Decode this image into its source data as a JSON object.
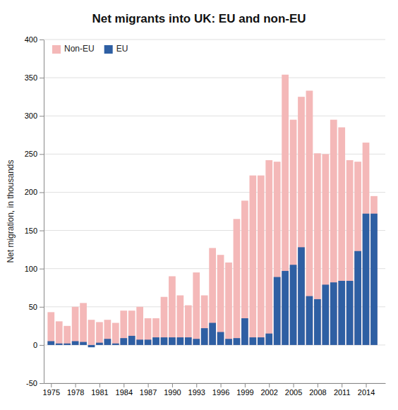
{
  "chart_data": {
    "type": "bar",
    "title": "Net migrants into UK: EU and non-EU",
    "y_label": "Net migration, in thousands",
    "x": [
      1975,
      1976,
      1977,
      1978,
      1979,
      1980,
      1981,
      1982,
      1983,
      1984,
      1985,
      1986,
      1987,
      1988,
      1989,
      1990,
      1991,
      1992,
      1993,
      1994,
      1995,
      1996,
      1997,
      1998,
      1999,
      2000,
      2001,
      2002,
      2003,
      2004,
      2005,
      2006,
      2007,
      2008,
      2009,
      2010,
      2011,
      2012,
      2013,
      2014,
      2015
    ],
    "series": [
      {
        "name": "Non-EU",
        "color": "#f4b8b8",
        "values": [
          43,
          31,
          25,
          50,
          55,
          33,
          30,
          33,
          29,
          45,
          45,
          50,
          35,
          35,
          63,
          90,
          65,
          52,
          95,
          65,
          127,
          118,
          108,
          165,
          189,
          222,
          222,
          242,
          240,
          354,
          295,
          325,
          333,
          251,
          250,
          295,
          285,
          242,
          240,
          265,
          195
        ]
      },
      {
        "name": "EU",
        "color": "#2e5fa3",
        "values": [
          5,
          2,
          2,
          5,
          4,
          -3,
          3,
          8,
          2,
          9,
          12,
          7,
          7,
          10,
          10,
          10,
          10,
          10,
          8,
          22,
          29,
          17,
          8,
          9,
          35,
          10,
          10,
          15,
          89,
          97,
          105,
          128,
          64,
          60,
          79,
          82,
          84,
          84,
          123,
          172,
          172
        ]
      }
    ],
    "stacked": false,
    "xlim": [
      1974.1,
      2016.4
    ],
    "xticks": [
      1975,
      1978,
      1981,
      1984,
      1987,
      1990,
      1993,
      1996,
      1999,
      2002,
      2005,
      2008,
      2011,
      2014
    ],
    "ylim": [
      -50,
      400
    ],
    "yticks": [
      -50,
      0,
      50,
      100,
      150,
      200,
      250,
      300,
      350,
      400
    ],
    "grid": true,
    "legend": "upper left"
  }
}
